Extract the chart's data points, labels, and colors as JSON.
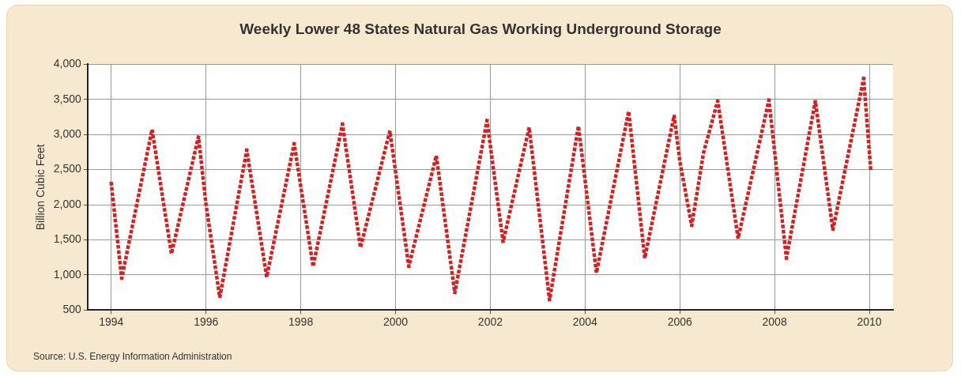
{
  "chart_data": {
    "type": "line",
    "title": "Weekly Lower 48 States Natural Gas Working Underground Storage",
    "ylabel": "Billion Cubic Feet",
    "annotations": [
      "Source: U.S. Energy Information Administration"
    ],
    "x": [
      1994.0,
      1994.22,
      1994.86,
      1995.27,
      1995.84,
      1996.0,
      1996.29,
      1996.86,
      1997.28,
      1997.86,
      1998.26,
      1998.88,
      1999.26,
      1999.88,
      2000.28,
      2000.86,
      2001.25,
      2001.93,
      2002.27,
      2002.82,
      2003.25,
      2003.86,
      2004.24,
      2004.92,
      2005.26,
      2005.88,
      2006.0,
      2006.25,
      2006.5,
      2006.8,
      2007.23,
      2007.88,
      2008.25,
      2008.86,
      2009.23,
      2009.88,
      2010.03
    ],
    "series": [
      {
        "color": "#d42020",
        "values": [
          2300,
          950,
          3070,
          1300,
          2970,
          2000,
          680,
          2780,
          970,
          2870,
          1120,
          3150,
          1390,
          3050,
          1120,
          2700,
          740,
          3200,
          1470,
          3100,
          640,
          3120,
          1030,
          3330,
          1240,
          3270,
          2620,
          1700,
          2740,
          3480,
          1520,
          3490,
          1240,
          3480,
          1640,
          3800,
          2490
        ]
      }
    ],
    "xlim": [
      1993.5,
      2010.5
    ],
    "xticks": [
      1994,
      1996,
      1998,
      2000,
      2002,
      2004,
      2006,
      2008,
      2010
    ],
    "ylim": [
      500,
      4000
    ],
    "yticks": [
      {
        "value": 500,
        "label": "500"
      },
      {
        "value": 1000,
        "label": "1,000"
      },
      {
        "value": 1500,
        "label": "1,500"
      },
      {
        "value": 2000,
        "label": "2,000"
      },
      {
        "value": 2500,
        "label": "2,500"
      },
      {
        "value": 3000,
        "label": "3,000"
      },
      {
        "value": 3500,
        "label": "3,500"
      },
      {
        "value": 4000,
        "label": "4,000"
      }
    ],
    "grid": true,
    "legend": false,
    "marker": "none",
    "line_style": "dotted"
  }
}
